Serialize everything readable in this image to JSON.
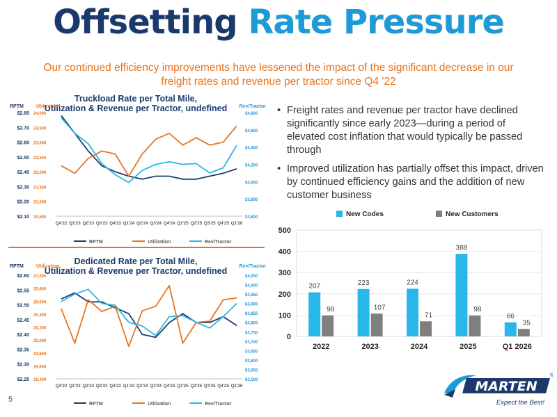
{
  "header": {
    "title_part1": "Offsetting",
    "title_part2": "Rate Pressure",
    "subtitle": "Our continued efficiency improvements have lessened the impact of the significant decrease in our freight rates and revenue per tractor since Q4 '22"
  },
  "bullets": [
    "Freight rates and revenue per tractor have declined significantly since early 2023—during a period of elevated cost inflation that would typically be passed through",
    "Improved utilization has partially offset this impact, driven by continued efficiency gains and the addition of new customer business"
  ],
  "footer": {
    "page_number": "5",
    "logo_text": "MARTEN",
    "logo_tagline": "Expect the Best!",
    "logo_reg": "®"
  },
  "colors": {
    "navy": "#1b3a6b",
    "blue": "#1e9ad6",
    "orange": "#e8731f",
    "light_blue": "#29b6e8",
    "gray": "#7f7f7f"
  },
  "chart_data": [
    {
      "type": "line",
      "title": "Truckload Rate per Total Mile, Utilization & Revenue per Tractor",
      "left_axis_label": "RPTM",
      "mid_axis_label": "Utilization",
      "right_axis_label": "Rev/Tractor",
      "categories": [
        "Q4'22",
        "Q1'23",
        "Q2'23",
        "Q3'23",
        "Q4'23",
        "Q1'24",
        "Q2'24",
        "Q3'24",
        "Q4'24",
        "Q1'25",
        "Q2'25",
        "Q3'25",
        "Q4'25",
        "Q1'26"
      ],
      "rptm_ticks": [
        "$2.80",
        "$2.70",
        "$2.60",
        "$2.50",
        "$2.40",
        "$2.30",
        "$2.20",
        "$2.10"
      ],
      "util_ticks": [
        "24,000",
        "23,500",
        "23,000",
        "22,500",
        "22,000",
        "21,500",
        "21,000",
        "20,500"
      ],
      "rev_ticks": [
        "$4,800",
        "$4,600",
        "$4,400",
        "$4,200",
        "$4,000",
        "$3,800",
        "$3,600"
      ],
      "rptm_range": [
        2.1,
        2.8
      ],
      "util_range": [
        20500,
        24000
      ],
      "rev_range": [
        3600,
        4800
      ],
      "series": [
        {
          "name": "RPTM",
          "axis": "left",
          "values": [
            2.78,
            2.66,
            2.54,
            2.44,
            2.4,
            2.37,
            2.35,
            2.37,
            2.37,
            2.35,
            2.35,
            2.37,
            2.39,
            2.42
          ]
        },
        {
          "name": "Utilization",
          "axis": "mid",
          "values": [
            22200,
            21950,
            22450,
            22700,
            22600,
            21850,
            22600,
            23100,
            23300,
            22900,
            23150,
            22900,
            23000,
            23550
          ]
        },
        {
          "name": "Rev/Tractor",
          "axis": "right",
          "values": [
            4740,
            4560,
            4440,
            4210,
            4080,
            3990,
            4130,
            4200,
            4230,
            4200,
            4210,
            4100,
            4160,
            4420
          ]
        }
      ],
      "legend": [
        "RPTM",
        "Utilization",
        "Rev/Tractor"
      ],
      "legend_position": "bottom"
    },
    {
      "type": "line",
      "title": "Dedicated Rate per Total Mile, Utilization & Revenue per Tractor",
      "left_axis_label": "RPTM",
      "mid_axis_label": "Utilization",
      "right_axis_label": "Rev/Tractor",
      "categories": [
        "Q4'22",
        "Q1'23",
        "Q2'23",
        "Q3'23",
        "Q4'23",
        "Q1'24",
        "Q2'24",
        "Q3'24",
        "Q4'24",
        "Q1'25",
        "Q2'25",
        "Q3'25",
        "Q4'25",
        "Q1'26"
      ],
      "rptm_ticks": [
        "$2.60",
        "$2.55",
        "$2.50",
        "$2.45",
        "$2.40",
        "$2.35",
        "$2.30",
        "$2.25"
      ],
      "util_ticks": [
        "21,000",
        "20,800",
        "20,600",
        "20,400",
        "20,200",
        "20,000",
        "19,800",
        "19,600",
        "19,400"
      ],
      "rev_ticks": [
        "$4,050",
        "$4,000",
        "$3,950",
        "$3,900",
        "$3,850",
        "$3,800",
        "$3,750",
        "$3,700",
        "$3,650",
        "$3,600",
        "$3,550",
        "$3,500"
      ],
      "rptm_range": [
        2.25,
        2.6
      ],
      "util_range": [
        19400,
        21000
      ],
      "rev_range": [
        3500,
        4050
      ],
      "series": [
        {
          "name": "RPTM",
          "axis": "left",
          "values": [
            2.52,
            2.54,
            2.51,
            2.51,
            2.49,
            2.47,
            2.4,
            2.39,
            2.44,
            2.47,
            2.44,
            2.44,
            2.46,
            2.43
          ]
        },
        {
          "name": "Utilization",
          "axis": "mid",
          "values": [
            20480,
            19950,
            20620,
            20440,
            20520,
            19900,
            20450,
            20520,
            20840,
            19950,
            20270,
            20290,
            20620,
            20650
          ]
        },
        {
          "name": "Rev/Tractor",
          "axis": "right",
          "values": [
            3910,
            3950,
            3975,
            3900,
            3890,
            3800,
            3780,
            3730,
            3830,
            3835,
            3800,
            3770,
            3830,
            3900
          ]
        }
      ],
      "legend": [
        "RPTM",
        "Utilization",
        "Rev/Tractor"
      ],
      "legend_position": "bottom"
    },
    {
      "type": "bar",
      "title": "",
      "categories": [
        "2022",
        "2023",
        "2024",
        "2025",
        "Q1 2026"
      ],
      "ylim": [
        0,
        500
      ],
      "yticks": [
        0,
        100,
        200,
        300,
        400,
        500
      ],
      "series": [
        {
          "name": "New Codes",
          "values": [
            207,
            223,
            224,
            388,
            66
          ]
        },
        {
          "name": "New Customers",
          "values": [
            98,
            107,
            71,
            98,
            35
          ]
        }
      ],
      "legend_position": "top"
    }
  ]
}
